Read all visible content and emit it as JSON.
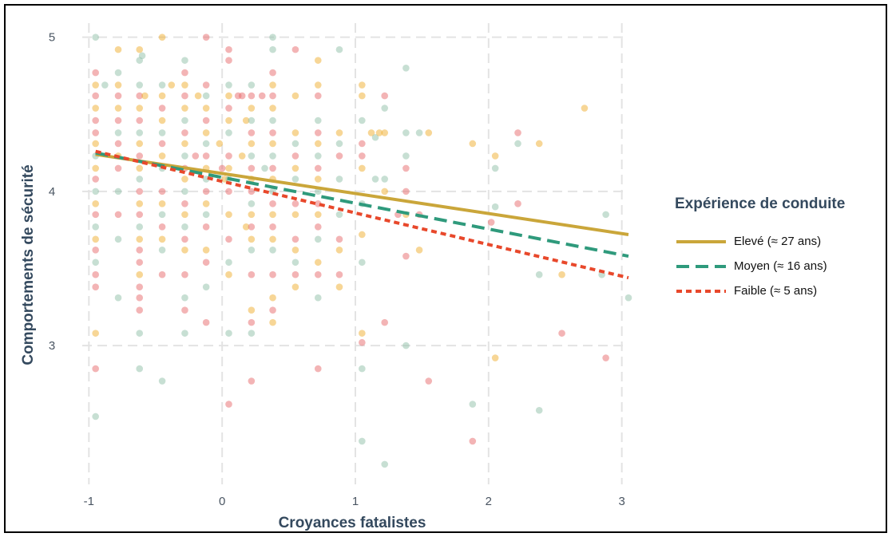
{
  "chart_data": {
    "type": "scatter",
    "title": "",
    "xlabel": "Croyances fatalistes",
    "ylabel": "Comportements de sécurité",
    "xlim": [
      -1.05,
      3.05
    ],
    "ylim": [
      2.1,
      5.05
    ],
    "xticks": [
      -1,
      0,
      1,
      2,
      3
    ],
    "yticks": [
      3,
      4,
      5
    ],
    "grid": true,
    "legend": {
      "title": "Expérience de conduite",
      "placement": "right"
    },
    "lines": [
      {
        "name": "Elevé (≈ 27 ans)",
        "color": "#caa63a",
        "dash": "solid",
        "x": [
          -0.95,
          3.05
        ],
        "y": [
          4.24,
          3.72
        ]
      },
      {
        "name": "Moyen (≈ 16 ans)",
        "color": "#2f9a7c",
        "dash": "dashed",
        "x": [
          -0.95,
          3.05
        ],
        "y": [
          4.25,
          3.58
        ]
      },
      {
        "name": "Faible (≈ 5 ans)",
        "color": "#e8482b",
        "dash": "dotted",
        "x": [
          -0.95,
          3.05
        ],
        "y": [
          4.26,
          3.44
        ]
      }
    ],
    "point_colors": [
      "#f0ad2e",
      "#e8696b",
      "#8fbfa8"
    ],
    "points": [
      [
        -0.95,
        5.0,
        2
      ],
      [
        -0.95,
        4.77,
        1
      ],
      [
        -0.95,
        4.69,
        0
      ],
      [
        -0.95,
        4.62,
        1
      ],
      [
        -0.95,
        4.54,
        0
      ],
      [
        -0.95,
        4.46,
        1
      ],
      [
        -0.95,
        4.38,
        1
      ],
      [
        -0.95,
        4.31,
        0
      ],
      [
        -0.95,
        4.23,
        2
      ],
      [
        -0.95,
        4.15,
        0
      ],
      [
        -0.95,
        4.08,
        1
      ],
      [
        -0.95,
        4.0,
        2
      ],
      [
        -0.95,
        3.92,
        0
      ],
      [
        -0.95,
        3.85,
        1
      ],
      [
        -0.95,
        3.77,
        2
      ],
      [
        -0.95,
        3.69,
        0
      ],
      [
        -0.95,
        3.62,
        1
      ],
      [
        -0.95,
        3.54,
        2
      ],
      [
        -0.95,
        3.46,
        1
      ],
      [
        -0.95,
        3.38,
        1
      ],
      [
        -0.95,
        3.08,
        0
      ],
      [
        -0.95,
        2.85,
        1
      ],
      [
        -0.95,
        2.54,
        2
      ],
      [
        -0.88,
        4.69,
        2
      ],
      [
        -0.78,
        4.92,
        0
      ],
      [
        -0.78,
        4.77,
        2
      ],
      [
        -0.78,
        4.69,
        0
      ],
      [
        -0.78,
        4.62,
        1
      ],
      [
        -0.78,
        4.54,
        0
      ],
      [
        -0.78,
        4.46,
        1
      ],
      [
        -0.78,
        4.38,
        2
      ],
      [
        -0.78,
        4.31,
        1
      ],
      [
        -0.78,
        4.23,
        0
      ],
      [
        -0.78,
        4.15,
        1
      ],
      [
        -0.78,
        4.0,
        2
      ],
      [
        -0.78,
        3.85,
        1
      ],
      [
        -0.78,
        3.69,
        2
      ],
      [
        -0.78,
        3.31,
        2
      ],
      [
        -0.62,
        4.92,
        0
      ],
      [
        -0.62,
        4.85,
        2
      ],
      [
        -0.62,
        4.69,
        2
      ],
      [
        -0.62,
        4.62,
        1
      ],
      [
        -0.62,
        4.54,
        0
      ],
      [
        -0.62,
        4.46,
        1
      ],
      [
        -0.62,
        4.38,
        2
      ],
      [
        -0.62,
        4.31,
        0
      ],
      [
        -0.62,
        4.23,
        1
      ],
      [
        -0.62,
        4.15,
        0
      ],
      [
        -0.62,
        4.08,
        2
      ],
      [
        -0.62,
        4.0,
        1
      ],
      [
        -0.62,
        3.92,
        0
      ],
      [
        -0.62,
        3.85,
        1
      ],
      [
        -0.62,
        3.77,
        2
      ],
      [
        -0.62,
        3.69,
        0
      ],
      [
        -0.62,
        3.62,
        1
      ],
      [
        -0.62,
        3.54,
        1
      ],
      [
        -0.62,
        3.46,
        0
      ],
      [
        -0.62,
        3.38,
        1
      ],
      [
        -0.62,
        3.31,
        1
      ],
      [
        -0.62,
        3.23,
        1
      ],
      [
        -0.62,
        3.08,
        2
      ],
      [
        -0.62,
        2.85,
        2
      ],
      [
        -0.6,
        4.88,
        2
      ],
      [
        -0.58,
        4.62,
        0
      ],
      [
        -0.45,
        5.0,
        0
      ],
      [
        -0.45,
        4.69,
        2
      ],
      [
        -0.45,
        4.62,
        0
      ],
      [
        -0.45,
        4.54,
        1
      ],
      [
        -0.45,
        4.46,
        0
      ],
      [
        -0.45,
        4.38,
        2
      ],
      [
        -0.45,
        4.31,
        1
      ],
      [
        -0.45,
        4.23,
        0
      ],
      [
        -0.45,
        4.15,
        2
      ],
      [
        -0.45,
        4.0,
        1
      ],
      [
        -0.45,
        3.92,
        0
      ],
      [
        -0.45,
        3.85,
        2
      ],
      [
        -0.45,
        3.77,
        1
      ],
      [
        -0.45,
        3.69,
        0
      ],
      [
        -0.45,
        3.62,
        2
      ],
      [
        -0.45,
        3.46,
        1
      ],
      [
        -0.45,
        2.77,
        2
      ],
      [
        -0.38,
        4.69,
        0
      ],
      [
        -0.28,
        4.85,
        2
      ],
      [
        -0.28,
        4.77,
        1
      ],
      [
        -0.28,
        4.69,
        0
      ],
      [
        -0.28,
        4.62,
        1
      ],
      [
        -0.28,
        4.54,
        0
      ],
      [
        -0.28,
        4.46,
        2
      ],
      [
        -0.28,
        4.38,
        1
      ],
      [
        -0.28,
        4.31,
        0
      ],
      [
        -0.28,
        4.23,
        2
      ],
      [
        -0.28,
        4.15,
        1
      ],
      [
        -0.28,
        4.08,
        0
      ],
      [
        -0.28,
        4.0,
        2
      ],
      [
        -0.28,
        3.92,
        1
      ],
      [
        -0.28,
        3.85,
        0
      ],
      [
        -0.28,
        3.77,
        2
      ],
      [
        -0.28,
        3.69,
        1
      ],
      [
        -0.28,
        3.62,
        0
      ],
      [
        -0.28,
        3.46,
        1
      ],
      [
        -0.28,
        3.31,
        2
      ],
      [
        -0.28,
        3.23,
        1
      ],
      [
        -0.28,
        3.08,
        2
      ],
      [
        -0.2,
        4.23,
        1
      ],
      [
        -0.18,
        4.62,
        0
      ],
      [
        -0.12,
        5.0,
        1
      ],
      [
        -0.12,
        4.69,
        1
      ],
      [
        -0.12,
        4.62,
        2
      ],
      [
        -0.12,
        4.54,
        0
      ],
      [
        -0.12,
        4.46,
        1
      ],
      [
        -0.12,
        4.38,
        0
      ],
      [
        -0.12,
        4.31,
        2
      ],
      [
        -0.12,
        4.23,
        1
      ],
      [
        -0.12,
        4.15,
        0
      ],
      [
        -0.12,
        4.08,
        2
      ],
      [
        -0.12,
        4.0,
        1
      ],
      [
        -0.12,
        3.92,
        0
      ],
      [
        -0.12,
        3.85,
        2
      ],
      [
        -0.12,
        3.77,
        1
      ],
      [
        -0.12,
        3.62,
        0
      ],
      [
        -0.12,
        3.54,
        1
      ],
      [
        -0.12,
        3.38,
        2
      ],
      [
        -0.12,
        3.15,
        1
      ],
      [
        -0.02,
        4.31,
        0
      ],
      [
        0.0,
        4.15,
        1
      ],
      [
        0.02,
        4.08,
        0
      ],
      [
        0.05,
        4.92,
        1
      ],
      [
        0.05,
        4.85,
        1
      ],
      [
        0.05,
        4.69,
        2
      ],
      [
        0.05,
        4.62,
        0
      ],
      [
        0.05,
        4.54,
        1
      ],
      [
        0.05,
        4.46,
        0
      ],
      [
        0.05,
        4.38,
        2
      ],
      [
        0.05,
        4.23,
        1
      ],
      [
        0.05,
        4.15,
        0
      ],
      [
        0.05,
        4.08,
        2
      ],
      [
        0.05,
        4.0,
        1
      ],
      [
        0.05,
        3.85,
        0
      ],
      [
        0.05,
        3.69,
        1
      ],
      [
        0.05,
        3.54,
        2
      ],
      [
        0.05,
        3.46,
        0
      ],
      [
        0.05,
        3.08,
        2
      ],
      [
        0.05,
        2.62,
        1
      ],
      [
        0.12,
        4.62,
        1
      ],
      [
        0.15,
        4.62,
        1
      ],
      [
        0.15,
        4.23,
        0
      ],
      [
        0.18,
        4.46,
        0
      ],
      [
        0.18,
        3.77,
        0
      ],
      [
        0.22,
        4.69,
        2
      ],
      [
        0.22,
        4.62,
        1
      ],
      [
        0.22,
        4.54,
        0
      ],
      [
        0.22,
        4.46,
        2
      ],
      [
        0.22,
        4.38,
        1
      ],
      [
        0.22,
        4.31,
        0
      ],
      [
        0.22,
        4.23,
        2
      ],
      [
        0.22,
        4.15,
        1
      ],
      [
        0.22,
        4.08,
        0
      ],
      [
        0.22,
        4.0,
        1
      ],
      [
        0.22,
        3.92,
        2
      ],
      [
        0.22,
        3.85,
        0
      ],
      [
        0.22,
        3.77,
        1
      ],
      [
        0.22,
        3.69,
        0
      ],
      [
        0.22,
        3.62,
        2
      ],
      [
        0.22,
        3.46,
        1
      ],
      [
        0.22,
        3.23,
        0
      ],
      [
        0.22,
        3.15,
        1
      ],
      [
        0.22,
        3.08,
        2
      ],
      [
        0.22,
        2.77,
        1
      ],
      [
        0.3,
        4.62,
        1
      ],
      [
        0.32,
        4.15,
        2
      ],
      [
        0.38,
        5.0,
        2
      ],
      [
        0.38,
        4.92,
        2
      ],
      [
        0.38,
        4.77,
        1
      ],
      [
        0.38,
        4.69,
        0
      ],
      [
        0.38,
        4.62,
        1
      ],
      [
        0.38,
        4.54,
        0
      ],
      [
        0.38,
        4.46,
        2
      ],
      [
        0.38,
        4.38,
        1
      ],
      [
        0.38,
        4.31,
        0
      ],
      [
        0.38,
        4.23,
        2
      ],
      [
        0.38,
        4.15,
        1
      ],
      [
        0.38,
        4.08,
        0
      ],
      [
        0.38,
        4.0,
        2
      ],
      [
        0.38,
        3.92,
        1
      ],
      [
        0.38,
        3.85,
        0
      ],
      [
        0.38,
        3.77,
        1
      ],
      [
        0.38,
        3.69,
        0
      ],
      [
        0.38,
        3.62,
        2
      ],
      [
        0.38,
        3.46,
        1
      ],
      [
        0.38,
        3.31,
        0
      ],
      [
        0.38,
        3.23,
        1
      ],
      [
        0.38,
        3.15,
        0
      ],
      [
        0.55,
        4.92,
        1
      ],
      [
        0.55,
        4.62,
        0
      ],
      [
        0.55,
        4.38,
        0
      ],
      [
        0.55,
        4.31,
        2
      ],
      [
        0.55,
        4.23,
        1
      ],
      [
        0.55,
        4.15,
        0
      ],
      [
        0.55,
        4.08,
        2
      ],
      [
        0.55,
        3.92,
        1
      ],
      [
        0.55,
        3.85,
        0
      ],
      [
        0.55,
        3.69,
        1
      ],
      [
        0.55,
        3.62,
        0
      ],
      [
        0.55,
        3.54,
        2
      ],
      [
        0.55,
        3.46,
        1
      ],
      [
        0.55,
        3.38,
        0
      ],
      [
        0.72,
        4.85,
        0
      ],
      [
        0.72,
        4.69,
        0
      ],
      [
        0.72,
        4.62,
        1
      ],
      [
        0.72,
        4.46,
        2
      ],
      [
        0.72,
        4.38,
        1
      ],
      [
        0.72,
        4.31,
        0
      ],
      [
        0.72,
        4.23,
        2
      ],
      [
        0.72,
        4.15,
        1
      ],
      [
        0.72,
        4.08,
        0
      ],
      [
        0.72,
        4.0,
        2
      ],
      [
        0.72,
        3.92,
        1
      ],
      [
        0.72,
        3.85,
        0
      ],
      [
        0.72,
        3.77,
        1
      ],
      [
        0.72,
        3.69,
        2
      ],
      [
        0.72,
        3.54,
        0
      ],
      [
        0.72,
        3.46,
        1
      ],
      [
        0.72,
        3.31,
        2
      ],
      [
        0.72,
        2.85,
        1
      ],
      [
        0.88,
        4.92,
        2
      ],
      [
        0.88,
        4.38,
        0
      ],
      [
        0.88,
        4.31,
        2
      ],
      [
        0.88,
        4.23,
        1
      ],
      [
        0.88,
        4.08,
        2
      ],
      [
        0.88,
        3.85,
        2
      ],
      [
        0.88,
        3.69,
        1
      ],
      [
        0.88,
        3.62,
        0
      ],
      [
        0.88,
        3.46,
        1
      ],
      [
        0.88,
        3.38,
        0
      ],
      [
        1.05,
        4.69,
        0
      ],
      [
        1.05,
        4.62,
        0
      ],
      [
        1.05,
        4.46,
        2
      ],
      [
        1.05,
        4.31,
        1
      ],
      [
        1.05,
        4.23,
        1
      ],
      [
        1.05,
        4.15,
        0
      ],
      [
        1.05,
        3.92,
        2
      ],
      [
        1.05,
        3.72,
        0
      ],
      [
        1.05,
        3.54,
        2
      ],
      [
        1.05,
        3.08,
        0
      ],
      [
        1.05,
        3.02,
        1
      ],
      [
        1.05,
        2.85,
        2
      ],
      [
        1.05,
        2.38,
        2
      ],
      [
        1.12,
        4.38,
        0
      ],
      [
        1.15,
        4.35,
        2
      ],
      [
        1.15,
        4.08,
        2
      ],
      [
        1.18,
        4.38,
        0
      ],
      [
        1.22,
        4.62,
        1
      ],
      [
        1.22,
        4.54,
        2
      ],
      [
        1.22,
        4.38,
        0
      ],
      [
        1.22,
        4.08,
        2
      ],
      [
        1.22,
        4.0,
        0
      ],
      [
        1.22,
        3.15,
        1
      ],
      [
        1.22,
        2.23,
        2
      ],
      [
        1.32,
        3.85,
        1
      ],
      [
        1.38,
        4.8,
        2
      ],
      [
        1.38,
        4.38,
        2
      ],
      [
        1.38,
        4.23,
        2
      ],
      [
        1.38,
        4.15,
        1
      ],
      [
        1.38,
        4.0,
        1
      ],
      [
        1.38,
        3.85,
        0
      ],
      [
        1.38,
        3.58,
        1
      ],
      [
        1.38,
        3.0,
        2
      ],
      [
        1.48,
        4.38,
        2
      ],
      [
        1.48,
        3.85,
        1
      ],
      [
        1.48,
        3.62,
        0
      ],
      [
        1.55,
        4.38,
        0
      ],
      [
        1.55,
        2.77,
        1
      ],
      [
        1.88,
        4.31,
        0
      ],
      [
        1.88,
        2.62,
        2
      ],
      [
        1.88,
        2.38,
        1
      ],
      [
        2.02,
        3.8,
        1
      ],
      [
        2.05,
        4.23,
        0
      ],
      [
        2.05,
        4.15,
        2
      ],
      [
        2.05,
        3.9,
        2
      ],
      [
        2.05,
        2.92,
        0
      ],
      [
        2.22,
        4.38,
        1
      ],
      [
        2.22,
        4.31,
        2
      ],
      [
        2.22,
        3.92,
        1
      ],
      [
        2.38,
        4.31,
        0
      ],
      [
        2.38,
        3.46,
        2
      ],
      [
        2.38,
        2.58,
        2
      ],
      [
        2.55,
        3.46,
        0
      ],
      [
        2.55,
        3.08,
        1
      ],
      [
        2.72,
        4.54,
        0
      ],
      [
        2.85,
        3.46,
        2
      ],
      [
        2.88,
        3.85,
        2
      ],
      [
        2.88,
        2.92,
        1
      ],
      [
        3.05,
        3.31,
        2
      ]
    ]
  }
}
